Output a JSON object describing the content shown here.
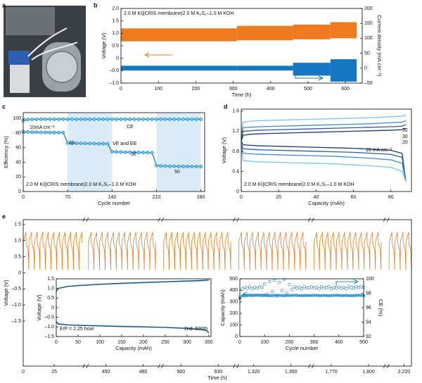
{
  "panel_labels": [
    "a",
    "b",
    "c",
    "d",
    "e"
  ],
  "chart_data": [
    {
      "type": "band",
      "xlabel": "Time (h)",
      "ylabel": "Voltage (V)",
      "y2label": "Current density (mA cm⁻²)",
      "annotations": [
        "2.0 M KI||CRIS membrane|2.0 M K₂S₂–1.0 M KOH"
      ],
      "bins": [
        0,
        310,
        460,
        560,
        630
      ],
      "series": [
        {
          "color": "#f07a1f",
          "low": [
            0.68,
            0.72,
            0.76,
            0.8
          ],
          "high": [
            1.2,
            1.3,
            1.35,
            1.45
          ]
        },
        {
          "color": "#1577c2",
          "axis": "y2",
          "low": [
            -8,
            -8,
            -25,
            -45
          ],
          "high": [
            8,
            8,
            18,
            30
          ]
        }
      ],
      "xlim": [
        0,
        645
      ],
      "xticks": [
        0,
        100,
        200,
        300,
        400,
        500,
        600
      ],
      "ylim": [
        -1,
        2
      ],
      "yticks": [
        {
          "value": -1,
          "label": "–1.0"
        },
        {
          "value": -0.5,
          "label": "–0.5"
        },
        0,
        0.5,
        {
          "value": 1,
          "label": "1.0"
        },
        1.5,
        {
          "value": 2,
          "label": "2.0"
        }
      ],
      "y2lim": [
        -50,
        200
      ],
      "y2ticks": [
        {
          "value": -50,
          "label": "–50"
        },
        0,
        50,
        100,
        150,
        200
      ]
    },
    {
      "type": "line",
      "xlabel": "Cycle number",
      "ylabel": "Efficiency (%)",
      "markers": true,
      "annotations": [
        "10mA cm⁻²",
        "20",
        "30",
        "50",
        "CE",
        "VE and EE",
        "2.0 M KI||CRIS membrane|2.0 M K₂S₂–1.0 M KOH"
      ],
      "shaded_ranges": [
        [
          70,
          140
        ],
        [
          210,
          280
        ]
      ],
      "shade_color": "#dcebf8",
      "x": [
        0,
        7,
        14,
        21,
        28,
        35,
        42,
        49,
        56,
        63,
        70,
        77,
        84,
        91,
        98,
        105,
        112,
        119,
        126,
        133,
        140,
        147,
        154,
        161,
        168,
        175,
        182,
        189,
        196,
        203,
        210,
        217,
        224,
        231,
        238,
        245,
        252,
        259,
        266,
        273,
        280
      ],
      "series": [
        {
          "color": "#1a7ec8",
          "values": [
            97,
            98.5,
            99,
            99,
            99,
            99,
            99,
            99,
            99,
            99,
            99,
            99,
            99,
            99,
            99,
            99,
            99,
            99,
            99,
            99,
            99,
            99,
            99,
            99,
            99,
            99,
            99,
            99,
            99,
            99,
            99,
            99,
            99,
            99,
            99,
            99,
            99,
            99,
            99,
            99,
            99
          ]
        },
        {
          "color": "#1a7ec8",
          "values": [
            82,
            81.5,
            81.3,
            81.2,
            81,
            81,
            80.8,
            80.7,
            80.6,
            80.5,
            66.5,
            66.2,
            66,
            66,
            65.8,
            65.7,
            65.6,
            65.5,
            65.4,
            65.3,
            54.5,
            54.2,
            54,
            53.8,
            53.7,
            53.6,
            53.5,
            53.4,
            53.3,
            53.2,
            35.5,
            35,
            34.8,
            34.6,
            34.5,
            34.4,
            34.3,
            34.3,
            34.2,
            34.2,
            34.1
          ]
        }
      ],
      "xlim": [
        0,
        286
      ],
      "xticks": [
        0,
        70,
        140,
        210,
        280
      ],
      "ylim": [
        0,
        108
      ],
      "yticks": [
        0,
        20,
        40,
        60,
        80,
        100
      ]
    },
    {
      "type": "line",
      "xlabel": "Capacity (mAh)",
      "ylabel": "Voltage (V)",
      "annotations": [
        "2.0 M KI||CRIS membrane|2.0 M K₂S₂–1.0 M KOH",
        "10 mA cm⁻²"
      ],
      "x": [
        0,
        1,
        5,
        10,
        20,
        30,
        40,
        50,
        60,
        70,
        80,
        86,
        88
      ],
      "series": [
        {
          "name": "50",
          "color": "#7cc3ea",
          "values": [
            1.2,
            1.38,
            1.4,
            1.41,
            1.42,
            1.43,
            1.44,
            1.45,
            1.46,
            1.47,
            1.49,
            1.5,
            1.52
          ]
        },
        {
          "name": "30",
          "color": "#3c8fd0",
          "values": [
            1.1,
            1.27,
            1.28,
            1.29,
            1.3,
            1.31,
            1.32,
            1.33,
            1.34,
            1.35,
            1.37,
            1.38,
            1.41
          ]
        },
        {
          "name": "20",
          "color": "#2a5da8",
          "values": [
            1.05,
            1.2,
            1.21,
            1.22,
            1.23,
            1.24,
            1.25,
            1.26,
            1.27,
            1.28,
            1.29,
            1.3,
            1.33
          ]
        },
        {
          "color": "#1b3a6b",
          "values": [
            1.0,
            1.12,
            1.14,
            1.15,
            1.16,
            1.17,
            1.18,
            1.19,
            1.2,
            1.21,
            1.22,
            1.23,
            1.26
          ]
        },
        {
          "color": "#1b3a6b",
          "values": [
            1.0,
            0.93,
            0.92,
            0.91,
            0.9,
            0.89,
            0.88,
            0.87,
            0.86,
            0.84,
            0.82,
            0.76,
            0.2
          ]
        },
        {
          "color": "#2a5da8",
          "values": [
            0.95,
            0.85,
            0.84,
            0.83,
            0.82,
            0.81,
            0.8,
            0.79,
            0.78,
            0.76,
            0.74,
            0.68,
            0.2
          ]
        },
        {
          "color": "#3c8fd0",
          "values": [
            0.9,
            0.76,
            0.75,
            0.74,
            0.73,
            0.72,
            0.71,
            0.7,
            0.68,
            0.66,
            0.63,
            0.56,
            0.2
          ]
        },
        {
          "color": "#7cc3ea",
          "values": [
            0.85,
            0.62,
            0.6,
            0.59,
            0.58,
            0.57,
            0.56,
            0.55,
            0.53,
            0.51,
            0.48,
            0.4,
            0.2
          ]
        }
      ],
      "xlim": [
        0,
        91
      ],
      "xticks": [
        0,
        20,
        40,
        60,
        80
      ],
      "ylim": [
        0,
        1.64
      ],
      "yticks": [
        0,
        0.4,
        0.8,
        1.2,
        1.6
      ]
    },
    {
      "type": "cycling",
      "xlabel": "Time (h)",
      "ylabel": "Voltage (V)",
      "x_segments": [
        [
          0,
          48
        ],
        [
          436,
          492
        ],
        [
          886,
          942
        ],
        [
          1308,
          1364
        ],
        [
          1756,
          1812
        ],
        [
          2208,
          2226
        ]
      ],
      "series": [
        {
          "color": "#f07a1f",
          "low": 0.1,
          "high": 1.25,
          "period": 4.5
        }
      ],
      "xticks": [
        0,
        25,
        450,
        480,
        900,
        930,
        {
          "value": 1320,
          "label": "1,320"
        },
        {
          "value": 1350,
          "label": "1,350"
        },
        {
          "value": 1770,
          "label": "1,770"
        },
        {
          "value": 1800,
          "label": "1,800"
        },
        {
          "value": 2220,
          "label": "2,220"
        }
      ],
      "ylim": [
        -2.9,
        1.65
      ],
      "yticks": [
        1.5,
        {
          "value": 1,
          "label": "1.0"
        },
        0.5,
        0,
        {
          "value": -0.5,
          "label": "–0.5"
        },
        {
          "value": -1,
          "label": "–1.0"
        },
        {
          "value": -1.5,
          "label": "–1.5"
        }
      ]
    },
    {
      "type": "line",
      "xlabel": "Capacity (mAh)",
      "ylabel": "Voltage (V)",
      "annotations": [
        "E/P = 2.25 hour",
        "2nd–500th"
      ],
      "x": [
        0,
        5,
        25,
        50,
        100,
        150,
        200,
        250,
        300,
        330,
        345,
        350
      ],
      "series": [
        {
          "color": "#7cc3ea",
          "values": [
            0.9,
            1.02,
            1.1,
            1.14,
            1.2,
            1.25,
            1.29,
            1.33,
            1.36,
            1.38,
            1.4,
            1.42
          ]
        },
        {
          "color": "#14507e",
          "values": [
            0.85,
            1.0,
            1.1,
            1.15,
            1.22,
            1.27,
            1.31,
            1.35,
            1.39,
            1.41,
            1.43,
            1.45
          ]
        },
        {
          "color": "#7cc3ea",
          "values": [
            -0.7,
            -0.82,
            -0.88,
            -0.9,
            -0.93,
            -0.96,
            -0.99,
            -1.02,
            -1.06,
            -1.1,
            -1.17,
            -1.28
          ]
        },
        {
          "color": "#14507e",
          "values": [
            -0.75,
            -0.85,
            -0.9,
            -0.92,
            -0.95,
            -0.98,
            -1.0,
            -1.03,
            -1.08,
            -1.13,
            -1.2,
            -1.32
          ]
        }
      ],
      "xlim": [
        0,
        355
      ],
      "xticks": [
        0,
        50,
        100,
        150,
        200,
        250,
        300,
        350
      ],
      "ylim": [
        -1.5,
        1.5
      ],
      "yticks": [
        {
          "value": -1.5,
          "label": "–1.5"
        },
        {
          "value": -1,
          "label": "–1.0"
        },
        {
          "value": -0.5,
          "label": "–0.5"
        },
        0,
        0.5,
        {
          "value": 1,
          "label": "1.0"
        },
        1.5
      ]
    },
    {
      "type": "scatter",
      "xlabel": "Cycle number",
      "ylabel": "Capacity (mAh)",
      "y2label": "CE (%)",
      "x": [
        0,
        10,
        20,
        30,
        40,
        50,
        60,
        70,
        80,
        90,
        100,
        110,
        120,
        130,
        140,
        150,
        160,
        170,
        180,
        190,
        200,
        210,
        220,
        230,
        240,
        250,
        260,
        270,
        280,
        290,
        300,
        310,
        320,
        330,
        340,
        350,
        360,
        370,
        380,
        390,
        400,
        410,
        420,
        430,
        440,
        450,
        460,
        470,
        480,
        490,
        500
      ],
      "series": [
        {
          "color": "#3d9fdc",
          "marker": "filled",
          "values": [
            330,
            352,
            354,
            355,
            356,
            355,
            356,
            357,
            356,
            355,
            356,
            355,
            354,
            355,
            356,
            357,
            356,
            355,
            355,
            356,
            355,
            356,
            357,
            356,
            355,
            354,
            355,
            356,
            355,
            356,
            357,
            356,
            355,
            355,
            356,
            355,
            354,
            355,
            356,
            357,
            356,
            355,
            355,
            356,
            355,
            354,
            355,
            356,
            357,
            356,
            355
          ]
        },
        {
          "color": "#1a6fb0",
          "marker": "open",
          "axis": "y2",
          "values": [
            97.5,
            98.6,
            98.8,
            98.7,
            98.9,
            98.6,
            98.8,
            98.7,
            98.9,
            98.8,
            99.3,
            97.9,
            99.6,
            98.2,
            99.8,
            97.6,
            99.5,
            98.4,
            99.9,
            98.0,
            99.2,
            98.5,
            98.9,
            98.7,
            98.8,
            98.6,
            98.9,
            98.7,
            98.8,
            98.9,
            98.7,
            98.8,
            98.6,
            98.9,
            98.7,
            98.8,
            98.9,
            98.6,
            98.8,
            98.7,
            98.9,
            98.7,
            98.8,
            98.6,
            98.9,
            98.8,
            98.7,
            98.9,
            98.8,
            98.9,
            98.8
          ]
        }
      ],
      "xlim": [
        0,
        500
      ],
      "xticks": [
        0,
        100,
        200,
        300,
        400,
        500
      ],
      "ylim": [
        0,
        500
      ],
      "yticks": [
        0,
        100,
        200,
        300,
        400,
        500
      ],
      "y2lim": [
        92,
        100
      ],
      "y2ticks": [
        92,
        94,
        96,
        98,
        100
      ]
    }
  ]
}
